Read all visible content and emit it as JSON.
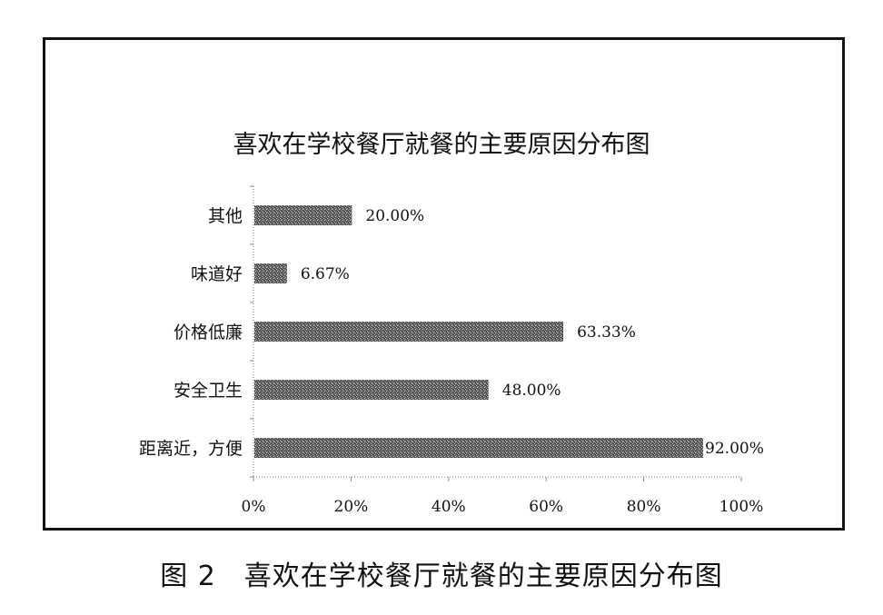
{
  "caption": "图 2　喜欢在学校餐厅就餐的主要原因分布图",
  "chart_data": {
    "type": "bar",
    "orientation": "horizontal",
    "title": "喜欢在学校餐厅就餐的主要原因分布图",
    "categories": [
      "其他",
      "味道好",
      "价格低廉",
      "安全卫生",
      "距离近，方便"
    ],
    "values": [
      20.0,
      6.67,
      63.33,
      48.0,
      92.0
    ],
    "value_labels": [
      "20.00%",
      "6.67%",
      "63.33%",
      "48.00%",
      "92.00%"
    ],
    "xlim": [
      0,
      100
    ],
    "x_ticks": [
      "0%",
      "20%",
      "40%",
      "60%",
      "80%",
      "100%"
    ],
    "grid": false,
    "legend": "none",
    "bar_color": "#6b6b6b"
  }
}
